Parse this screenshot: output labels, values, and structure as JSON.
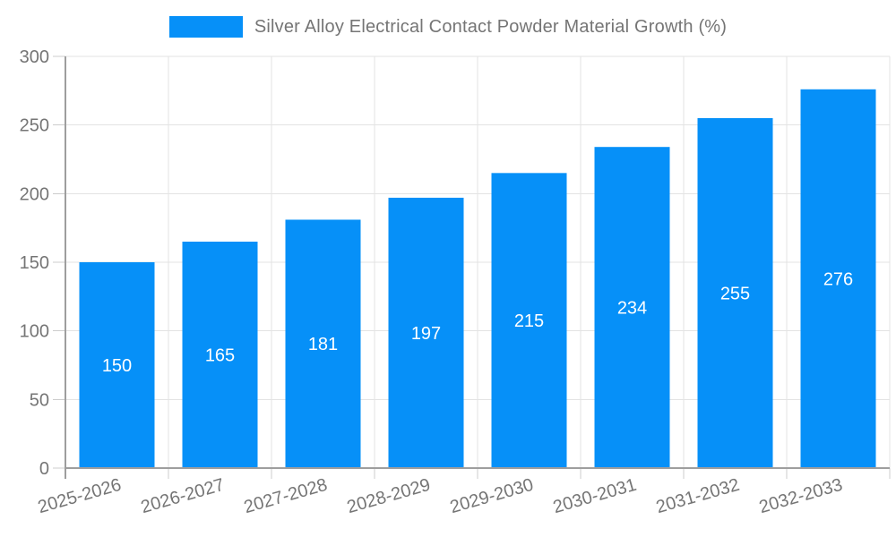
{
  "chart_data": {
    "type": "bar",
    "title": "Silver Alloy Electrical Contact Powder Material Growth (%)",
    "xlabel": "",
    "ylabel": "",
    "categories": [
      "2025-2026",
      "2026-2027",
      "2027-2028",
      "2028-2029",
      "2029-2030",
      "2030-2031",
      "2031-2032",
      "2032-2033"
    ],
    "series": [
      {
        "name": "Silver Alloy Electrical Contact Powder Material Growth (%)",
        "values": [
          150,
          165,
          181,
          197,
          215,
          234,
          255,
          276
        ]
      }
    ],
    "value_labels_shown": true,
    "ylim": [
      0,
      300
    ],
    "yticks": [
      0,
      50,
      100,
      150,
      200,
      250,
      300
    ],
    "grid": true,
    "legend_position": "top-center",
    "x_label_rotation_deg": -16,
    "colors": {
      "bar": "#0690f8",
      "value_label": "#ffffff",
      "axis_text": "#757575",
      "axis_line": "#9e9e9e",
      "grid_line": "#e3e3e3",
      "tick_line": "#cccccc"
    }
  },
  "legend": {
    "label": "Silver Alloy Electrical Contact Powder Material Growth (%)"
  }
}
